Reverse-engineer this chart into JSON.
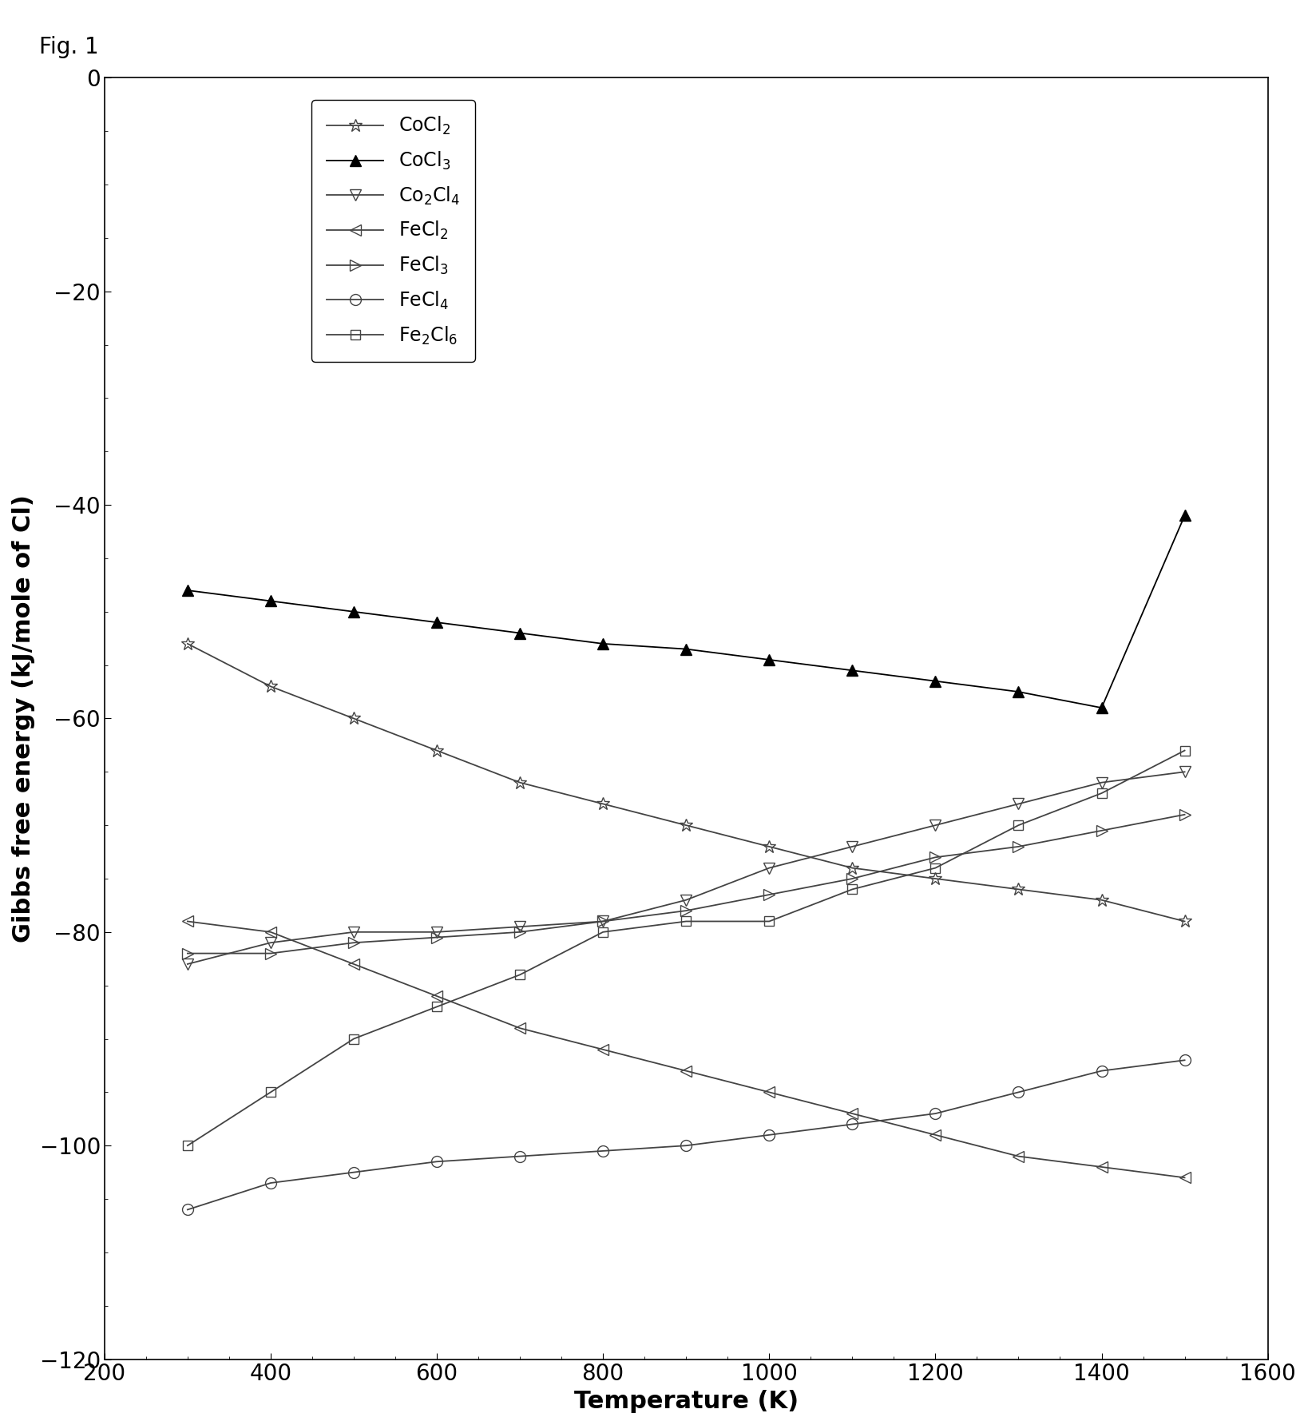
{
  "fig_label": "Fig. 1",
  "xlabel": "Temperature (K)",
  "ylabel": "Gibbs free energy (kJ/mole of Cl)",
  "xlim": [
    200,
    1600
  ],
  "ylim": [
    -120,
    0
  ],
  "xticks": [
    200,
    400,
    600,
    800,
    1000,
    1200,
    1400,
    1600
  ],
  "yticks": [
    0,
    -20,
    -40,
    -60,
    -80,
    -100,
    -120
  ],
  "temperature": [
    300,
    400,
    500,
    600,
    700,
    800,
    900,
    1000,
    1100,
    1200,
    1300,
    1400,
    1500
  ],
  "series": [
    {
      "label": "CoCl$_2$",
      "color": "#444444",
      "marker": "*",
      "mfc": "none",
      "mec": "#444444",
      "markersize": 12,
      "values": [
        -53,
        -57,
        -60,
        -63,
        -66,
        -68,
        -70,
        -72,
        -74,
        -75,
        -76,
        -77,
        -79
      ]
    },
    {
      "label": "CoCl$_3$",
      "color": "#000000",
      "marker": "^",
      "mfc": "#000000",
      "mec": "#000000",
      "markersize": 10,
      "values": [
        -48,
        -49,
        -50,
        -51,
        -52,
        -53,
        -53.5,
        -54.5,
        -55.5,
        -56.5,
        -57.5,
        -59,
        -41
      ]
    },
    {
      "label": "Co$_2$Cl$_4$",
      "color": "#444444",
      "marker": "v",
      "mfc": "none",
      "mec": "#444444",
      "markersize": 10,
      "values": [
        -83,
        -81,
        -80,
        -80,
        -79.5,
        -79,
        -77,
        -74,
        -72,
        -70,
        -68,
        -66,
        -65
      ]
    },
    {
      "label": "FeCl$_2$",
      "color": "#444444",
      "marker": "<",
      "mfc": "none",
      "mec": "#444444",
      "markersize": 10,
      "values": [
        -79,
        -80,
        -83,
        -86,
        -89,
        -91,
        -93,
        -95,
        -97,
        -99,
        -101,
        -102,
        -103
      ]
    },
    {
      "label": "FeCl$_3$",
      "color": "#444444",
      "marker": ">",
      "mfc": "none",
      "mec": "#444444",
      "markersize": 10,
      "values": [
        -82,
        -82,
        -81,
        -80.5,
        -80,
        -79,
        -78,
        -76.5,
        -75,
        -73,
        -72,
        -70.5,
        -69
      ]
    },
    {
      "label": "FeCl$_4$",
      "color": "#444444",
      "marker": "o",
      "mfc": "none",
      "mec": "#444444",
      "markersize": 10,
      "values": [
        -106,
        -103.5,
        -102.5,
        -101.5,
        -101,
        -100.5,
        -100,
        -99,
        -98,
        -97,
        -95,
        -93,
        -92
      ]
    },
    {
      "label": "Fe$_2$Cl$_6$",
      "color": "#444444",
      "marker": "s",
      "mfc": "none",
      "mec": "#444444",
      "markersize": 9,
      "values": [
        -100,
        -95,
        -90,
        -87,
        -84,
        -80,
        -79,
        -79,
        -76,
        -74,
        -70,
        -67,
        -63
      ]
    }
  ],
  "linewidth": 1.3,
  "figsize": [
    16.38,
    17.84
  ],
  "dpi": 100
}
